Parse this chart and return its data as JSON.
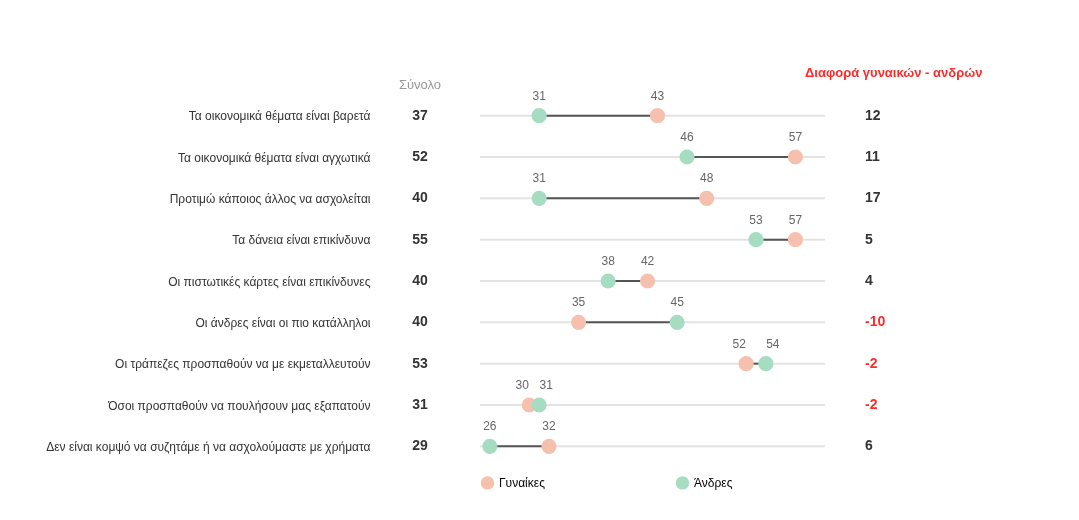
{
  "chart_data": [
    {
      "type": "scatter",
      "categories": [
        "Τα οικονομικά θέματα είναι βαρετά",
        "Τα οικονομικά θέματα είναι αγχωτικά",
        "Προτιμώ κάποιος άλλος να ασχολείται",
        "Τα δάνεια είναι επικίνδυνα",
        "Οι πιστωτικές κάρτες είναι επικίνδυνες",
        "Οι άνδρες είναι οι πιο κατάλληλοι",
        "Οι τράπεζες προσπαθούν  να με εκμεταλλευτούν",
        "Όσοι προσπαθούν να πουλήσουν μας εξαπατούν",
        "Δεν είναι κομψό να συζητάμε  ή να ασχολούμαστε με χρήματα"
      ],
      "series": [
        {
          "name": "Γυναίκες",
          "color": "#f5c0ae",
          "values": [
            43,
            57,
            48,
            57,
            42,
            35,
            52,
            30,
            32
          ]
        },
        {
          "name": "Άνδρες",
          "color": "#a6dcc2",
          "values": [
            31,
            46,
            31,
            53,
            38,
            45,
            54,
            31,
            26
          ]
        }
      ],
      "orientation": "horizontal",
      "xlim": [
        25,
        60
      ],
      "data_labels": true,
      "grid": "y",
      "legend": "bottom",
      "tick_labels": "y",
      "marker": "circle"
    },
    {
      "type": "other",
      "title": "Σύνολο",
      "annotations": [
        "37",
        "52",
        "40",
        "55",
        "40",
        "40",
        "53",
        "31",
        "29"
      ]
    },
    {
      "type": "other",
      "title": "Διαφορά γυναικών - ανδρών",
      "annotations": [
        "12",
        "11",
        "17",
        "5",
        "4",
        "-10",
        "-2",
        "-2",
        "6"
      ],
      "colors": [
        "#333333",
        "#333333",
        "#333333",
        "#333333",
        "#333333",
        "#ff2b2b",
        "#ff2b2b",
        "#ff2b2b",
        "#333333"
      ]
    }
  ]
}
